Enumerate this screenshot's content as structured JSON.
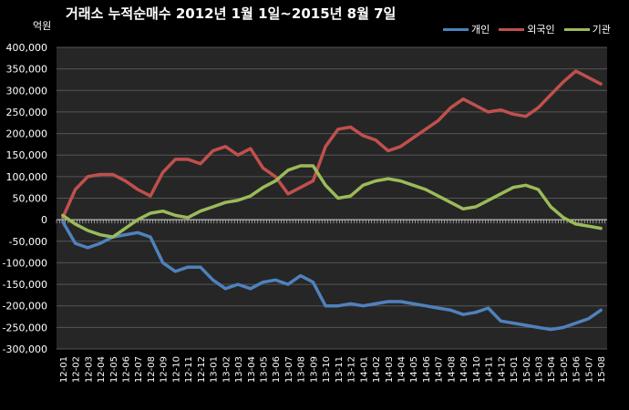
{
  "title": "거래소 누적순매수 2012년 1월 1일~2015년 8월 7일",
  "unit": "억원",
  "legend": [
    "개인",
    "외국인",
    "기관"
  ],
  "colors": {
    "개인": "#4f81bd",
    "외국인": "#c0504d",
    "기관": "#9bbb59",
    "plot_bg": "#262626",
    "grid": "#555555"
  },
  "chart_data": {
    "type": "line",
    "title": "거래소 누적순매수 2012년 1월 1일~2015년 8월 7일",
    "ylabel": "억원",
    "ylim": [
      -300000,
      400000
    ],
    "y_ticks": [
      "400,000",
      "350,000",
      "300,000",
      "250,000",
      "200,000",
      "150,000",
      "100,000",
      "50,000",
      "0",
      "-50,000",
      "-100,000",
      "-150,000",
      "-200,000",
      "-250,000",
      "-300,000"
    ],
    "y_tick_values": [
      400000,
      350000,
      300000,
      250000,
      200000,
      150000,
      100000,
      50000,
      0,
      -50000,
      -100000,
      -150000,
      -200000,
      -250000,
      -300000
    ],
    "categories": [
      "12-01",
      "12-02",
      "12-03",
      "12-04",
      "12-05",
      "12-06",
      "12-07",
      "12-08",
      "12-09",
      "12-10",
      "12-11",
      "12-12",
      "13-01",
      "13-02",
      "13-03",
      "13-04",
      "13-05",
      "13-06",
      "13-07",
      "13-08",
      "13-09",
      "13-10",
      "13-11",
      "13-12",
      "14-01",
      "14-02",
      "14-03",
      "14-04",
      "14-05",
      "14-06",
      "14-07",
      "14-08",
      "14-09",
      "14-10",
      "14-11",
      "14-12",
      "15-01",
      "15-02",
      "15-03",
      "15-04",
      "15-05",
      "15-06",
      "15-07",
      "15-08"
    ],
    "legend_position": "top-right",
    "series": [
      {
        "name": "개인",
        "values": [
          -5000,
          -55000,
          -65000,
          -55000,
          -40000,
          -35000,
          -30000,
          -40000,
          -100000,
          -120000,
          -110000,
          -110000,
          -140000,
          -160000,
          -150000,
          -160000,
          -145000,
          -140000,
          -150000,
          -130000,
          -145000,
          -200000,
          -200000,
          -195000,
          -200000,
          -195000,
          -190000,
          -190000,
          -195000,
          -200000,
          -205000,
          -210000,
          -220000,
          -215000,
          -205000,
          -235000,
          -240000,
          -245000,
          -250000,
          -255000,
          -250000,
          -240000,
          -230000,
          -210000
        ]
      },
      {
        "name": "외국인",
        "values": [
          5000,
          70000,
          100000,
          105000,
          105000,
          90000,
          70000,
          55000,
          110000,
          140000,
          140000,
          130000,
          160000,
          170000,
          150000,
          165000,
          120000,
          100000,
          60000,
          75000,
          90000,
          170000,
          210000,
          215000,
          195000,
          185000,
          160000,
          170000,
          190000,
          210000,
          230000,
          260000,
          280000,
          265000,
          250000,
          255000,
          245000,
          240000,
          260000,
          290000,
          320000,
          345000,
          330000,
          315000
        ]
      },
      {
        "name": "기관",
        "values": [
          10000,
          -10000,
          -25000,
          -35000,
          -40000,
          -20000,
          0,
          15000,
          20000,
          10000,
          5000,
          20000,
          30000,
          40000,
          45000,
          55000,
          75000,
          90000,
          115000,
          125000,
          125000,
          80000,
          50000,
          55000,
          80000,
          90000,
          95000,
          90000,
          80000,
          70000,
          55000,
          40000,
          25000,
          30000,
          45000,
          60000,
          75000,
          80000,
          70000,
          30000,
          5000,
          -10000,
          -15000,
          -20000
        ]
      }
    ]
  }
}
